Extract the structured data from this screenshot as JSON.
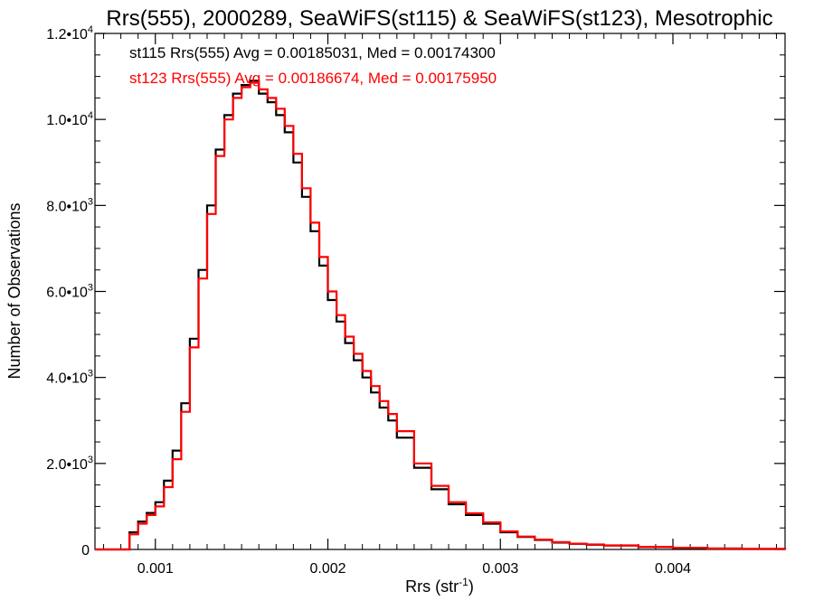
{
  "chart_data": {
    "type": "line",
    "title": "Rrs(555), 2000289, SeaWiFS(st115) & SeaWiFS(st123), Mesotrophic",
    "xlabel_base": "Rrs (str",
    "xlabel_sup": "-1",
    "xlabel_close": ")",
    "ylabel": "Number of Observations",
    "xlim": [
      0.00065,
      0.00465
    ],
    "ylim": [
      0,
      12000
    ],
    "xticks": [
      {
        "value": 0.001,
        "label": "0.001"
      },
      {
        "value": 0.002,
        "label": "0.002"
      },
      {
        "value": 0.003,
        "label": "0.003"
      },
      {
        "value": 0.004,
        "label": "0.004"
      }
    ],
    "yticks": [
      {
        "value": 0,
        "base": "0",
        "exp": ""
      },
      {
        "value": 2000,
        "base": "2.0•10",
        "exp": "3"
      },
      {
        "value": 4000,
        "base": "4.0•10",
        "exp": "3"
      },
      {
        "value": 6000,
        "base": "6.0•10",
        "exp": "3"
      },
      {
        "value": 8000,
        "base": "8.0•10",
        "exp": "3"
      },
      {
        "value": 10000,
        "base": "1.0•10",
        "exp": "4"
      },
      {
        "value": 12000,
        "base": "1.2•10",
        "exp": "4"
      }
    ],
    "series": [
      {
        "name": "st115",
        "color": "#000000",
        "legend": "st115 Rrs(555) Avg = 0.00185031, Med = 0.00174300",
        "x": [
          0.00065,
          0.00075,
          0.0008,
          0.00085,
          0.0009,
          0.00095,
          0.001,
          0.00105,
          0.0011,
          0.00115,
          0.0012,
          0.00125,
          0.0013,
          0.00135,
          0.0014,
          0.00145,
          0.0015,
          0.00155,
          0.0016,
          0.00165,
          0.0017,
          0.00175,
          0.0018,
          0.00185,
          0.0019,
          0.00195,
          0.002,
          0.00205,
          0.0021,
          0.00215,
          0.0022,
          0.00225,
          0.0023,
          0.00235,
          0.0024,
          0.0025,
          0.0026,
          0.0027,
          0.0028,
          0.0029,
          0.003,
          0.0031,
          0.0032,
          0.0033,
          0.0034,
          0.0035,
          0.0036,
          0.0038,
          0.004,
          0.0042,
          0.0044,
          0.00465
        ],
        "y": [
          0,
          0,
          0,
          400,
          650,
          850,
          1100,
          1600,
          2300,
          3400,
          4900,
          6500,
          8000,
          9300,
          10100,
          10600,
          10800,
          10900,
          10600,
          10400,
          10100,
          9700,
          9000,
          8200,
          7400,
          6600,
          5800,
          5300,
          4800,
          4400,
          4000,
          3650,
          3300,
          3000,
          2600,
          1900,
          1400,
          1050,
          800,
          600,
          400,
          290,
          220,
          160,
          130,
          110,
          90,
          55,
          35,
          20,
          10,
          5
        ]
      },
      {
        "name": "st123",
        "color": "#ff0000",
        "legend": "st123 Rrs(555) Avg = 0.00186674, Med = 0.00175950",
        "x": [
          0.00065,
          0.00075,
          0.0008,
          0.00085,
          0.0009,
          0.00095,
          0.001,
          0.00105,
          0.0011,
          0.00115,
          0.0012,
          0.00125,
          0.0013,
          0.00135,
          0.0014,
          0.00145,
          0.0015,
          0.00155,
          0.0016,
          0.00165,
          0.0017,
          0.00175,
          0.0018,
          0.00185,
          0.0019,
          0.00195,
          0.002,
          0.00205,
          0.0021,
          0.00215,
          0.0022,
          0.00225,
          0.0023,
          0.00235,
          0.0024,
          0.0025,
          0.0026,
          0.0027,
          0.0028,
          0.0029,
          0.003,
          0.0031,
          0.0032,
          0.0033,
          0.0034,
          0.0035,
          0.0036,
          0.0038,
          0.004,
          0.0042,
          0.0044,
          0.00465
        ],
        "y": [
          0,
          0,
          0,
          350,
          600,
          800,
          1000,
          1450,
          2100,
          3200,
          4700,
          6300,
          7800,
          9150,
          10000,
          10500,
          10750,
          10850,
          10700,
          10500,
          10250,
          9850,
          9200,
          8400,
          7600,
          6800,
          6000,
          5450,
          4950,
          4550,
          4150,
          3800,
          3450,
          3150,
          2750,
          2000,
          1480,
          1100,
          840,
          630,
          420,
          300,
          230,
          170,
          135,
          115,
          95,
          60,
          38,
          22,
          12,
          6
        ]
      }
    ]
  }
}
